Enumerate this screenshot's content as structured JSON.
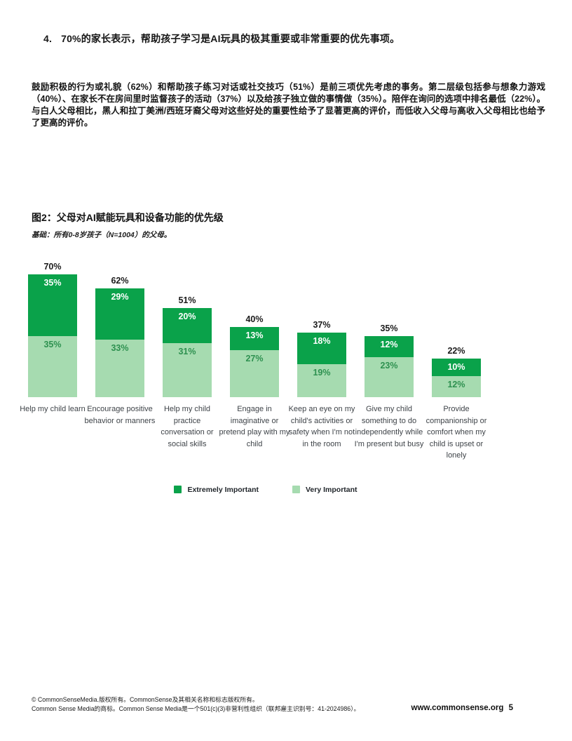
{
  "page": {
    "heading_number": "4.",
    "heading_text": "70%的家长表示，帮助孩子学习是AI玩具的极其重要或非常重要的优先事项。",
    "paragraph": "鼓励积极的行为或礼貌（62%）和帮助孩子练习对话或社交技巧（51%）是前三项优先考虑的事务。第二层级包括参与想象力游戏（40%）、在家长不在房间里时监督孩子的活动（37%）以及给孩子独立做的事情做（35%）。陪伴在询问的选项中排名最低（22%）。与白人父母相比，黑人和拉丁美洲/西班牙裔父母对这些好处的重要性给予了显著更高的评价，而低收入父母与高收入父母相比也给予了更高的评价。"
  },
  "figure": {
    "title": "图2：父母对AI赋能玩具和设备功能的优先级",
    "base_note": "基础：所有0-8岁孩子（N=1004）的父母。"
  },
  "chart_data": {
    "type": "bar",
    "stacked": true,
    "orientation": "vertical",
    "grid": false,
    "legend_position": "bottom",
    "value_suffix": "%",
    "ylim": [
      0,
      80
    ],
    "categories": [
      "Help my child learn",
      "Encourage positive behavior or manners",
      "Help my child practice conversation or social skills",
      "Engage in imaginative or pretend play with my child",
      "Keep an eye on my child's activities or safety when I'm not in the room",
      "Give my child something to do independently while I'm present but busy",
      "Provide companionship or comfort when my child is upset or lonely"
    ],
    "totals": [
      70,
      62,
      51,
      40,
      37,
      35,
      22
    ],
    "series": [
      {
        "name": "Extremely Important",
        "color": "#0aa24a",
        "values": [
          35,
          29,
          20,
          13,
          18,
          12,
          10
        ]
      },
      {
        "name": "Very Important",
        "color": "#a6dbb0",
        "values": [
          35,
          33,
          31,
          27,
          19,
          23,
          12
        ]
      }
    ]
  },
  "colors": {
    "extremely_green": "#0aa24a",
    "very_green": "#a6dbb0",
    "light_segment_label": "#2e9150"
  },
  "footer": {
    "line1": "© CommonSenseMedia.版权所有。CommonSense及其相关名称和标志版权所有。",
    "line2": "Common Sense Media的商标。Common Sense Media是一个501(c)(3)非营利性组织（联邦雇主识别号：41-2024986）。",
    "site": "www.commonsense.org",
    "page_number": "5"
  }
}
